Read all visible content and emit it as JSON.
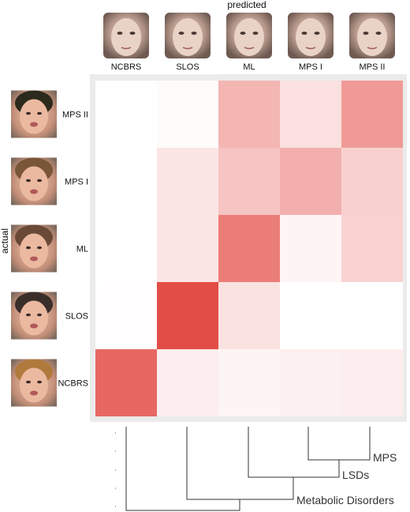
{
  "chart_data": {
    "type": "heatmap",
    "x_axis_title": "predicted",
    "y_axis_title": "actual",
    "x_labels": [
      "NCBRS",
      "SLOS",
      "ML",
      "MPS I",
      "MPS II"
    ],
    "y_labels": [
      "MPS II",
      "MPS I",
      "ML",
      "SLOS",
      "NCBRS"
    ],
    "values": [
      [
        0.0,
        0.02,
        0.35,
        0.15,
        0.48
      ],
      [
        0.0,
        0.12,
        0.28,
        0.38,
        0.22
      ],
      [
        0.0,
        0.12,
        0.62,
        0.05,
        0.21
      ],
      [
        0.01,
        0.85,
        0.14,
        0.0,
        0.0
      ],
      [
        0.72,
        0.08,
        0.05,
        0.07,
        0.08
      ]
    ],
    "color_low": "#ffffff",
    "color_high": "#de2d26",
    "panel_background": "#ebebeb",
    "dendrogram": {
      "labels": [
        "MPS",
        "LSDs",
        "Metabolic Disorders"
      ]
    }
  }
}
